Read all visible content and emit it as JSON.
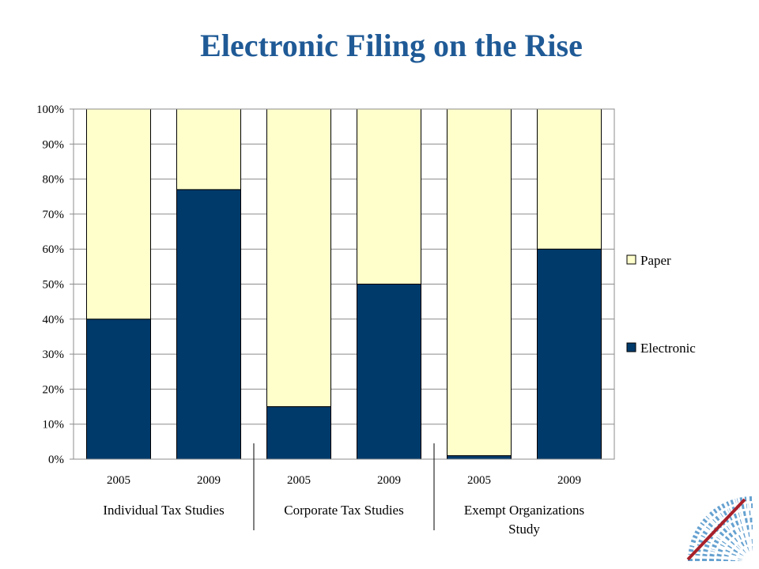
{
  "chart_data": {
    "type": "bar",
    "stacked": true,
    "percent": true,
    "title": "Electronic Filing on the Rise",
    "categories": [
      "2005",
      "2009",
      "2005",
      "2009",
      "2005",
      "2009"
    ],
    "groups": [
      {
        "label_lines": [
          "Individual Tax Studies"
        ],
        "span": [
          0,
          1
        ]
      },
      {
        "label_lines": [
          "Corporate Tax Studies"
        ],
        "span": [
          2,
          3
        ]
      },
      {
        "label_lines": [
          "Exempt Organizations",
          "Study"
        ],
        "span": [
          4,
          5
        ]
      }
    ],
    "series": [
      {
        "name": "Electronic",
        "values": [
          40,
          77,
          15,
          50,
          1,
          60
        ],
        "color": "#003a6b"
      },
      {
        "name": "Paper",
        "values": [
          60,
          23,
          85,
          50,
          99,
          40
        ],
        "color": "#ffffcc"
      }
    ],
    "yticks": [
      "0%",
      "10%",
      "20%",
      "30%",
      "40%",
      "50%",
      "60%",
      "70%",
      "80%",
      "90%",
      "100%"
    ],
    "ylim": [
      0,
      100
    ],
    "grid": true,
    "legend": {
      "placement": "right",
      "order": [
        "Paper",
        "Electronic"
      ]
    }
  },
  "colors": {
    "title": "#1f5a96",
    "logo_blue": "#4a90c8",
    "logo_red": "#a8202a"
  }
}
